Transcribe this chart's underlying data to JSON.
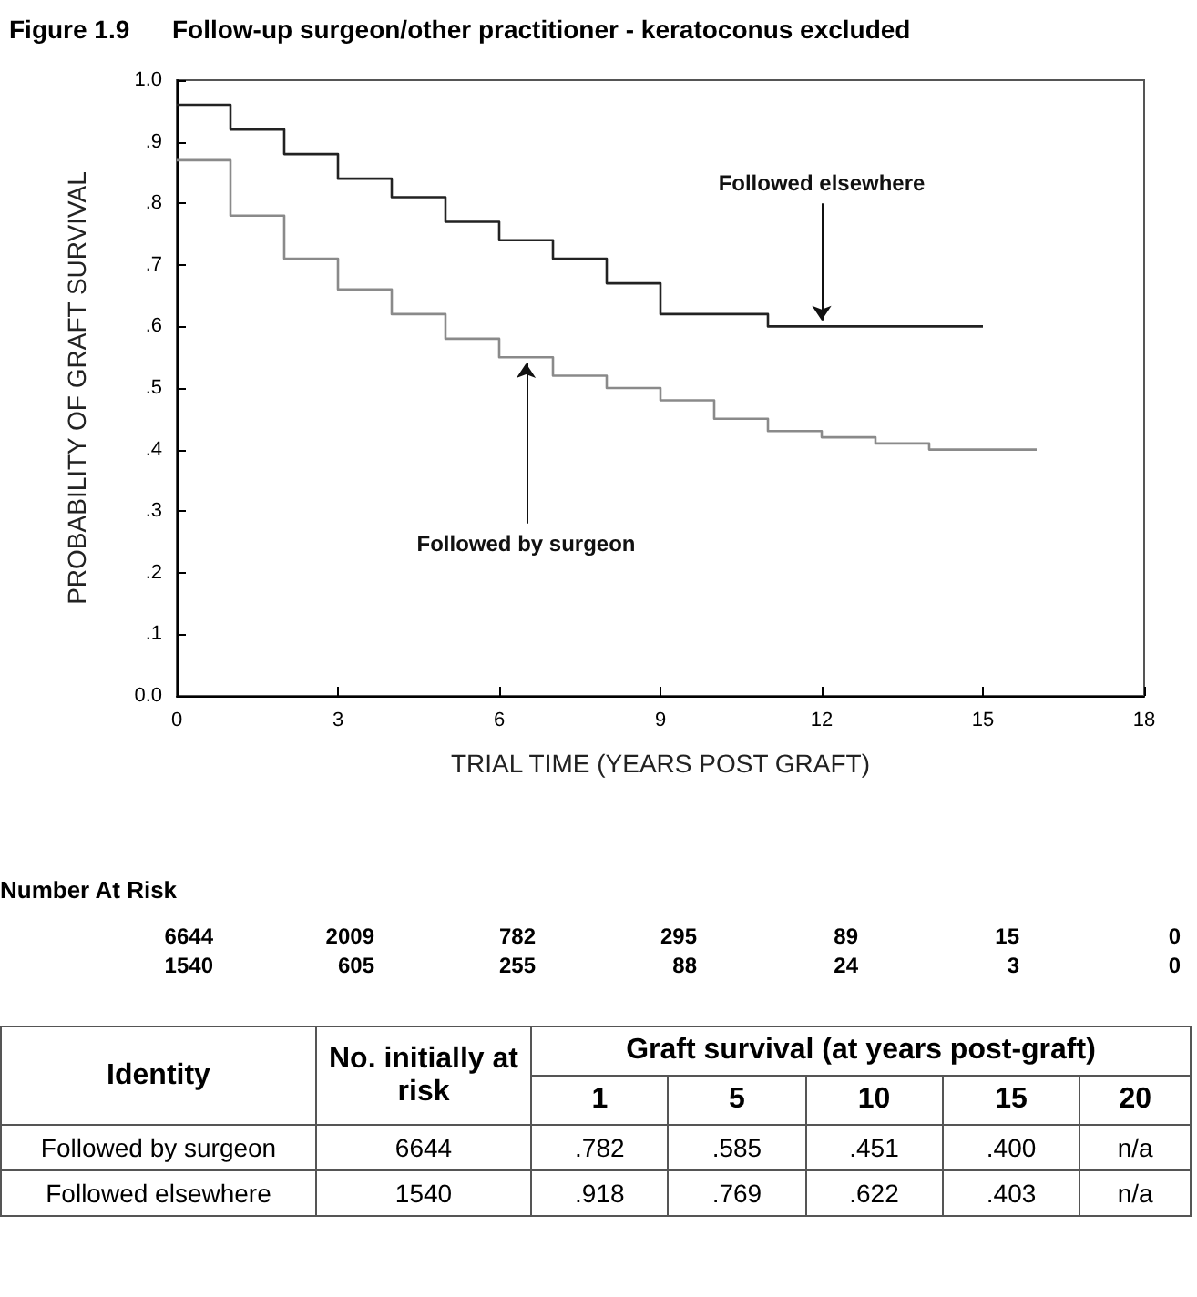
{
  "chart_data": {
    "type": "step",
    "title": "Figure 1.9      Follow-up surgeon/other practitioner - keratoconus excluded",
    "xlabel": "TRIAL TIME (YEARS POST GRAFT)",
    "ylabel": "PROBABILITY OF GRAFT SURVIVAL",
    "xlim": [
      0,
      18
    ],
    "xticks": [
      0,
      3,
      6,
      9,
      12,
      15,
      18
    ],
    "ylim": [
      0,
      1
    ],
    "yticks": [
      {
        "value": 0,
        "label": "0.0"
      },
      {
        "value": 0.1,
        "label": ".1"
      },
      {
        "value": 0.2,
        "label": ".2"
      },
      {
        "value": 0.3,
        "label": ".3"
      },
      {
        "value": 0.4,
        "label": ".4"
      },
      {
        "value": 0.5,
        "label": ".5"
      },
      {
        "value": 0.6,
        "label": ".6"
      },
      {
        "value": 0.7,
        "label": ".7"
      },
      {
        "value": 0.8,
        "label": ".8"
      },
      {
        "value": 0.9,
        "label": ".9"
      },
      {
        "value": 1,
        "label": "1.0"
      }
    ],
    "grid": false,
    "marker": "none",
    "line_style": "solid",
    "series": [
      {
        "color": "#222222",
        "x": [
          0,
          1,
          2,
          3,
          4,
          5,
          6,
          7,
          8,
          9,
          11,
          15
        ],
        "values": [
          0.96,
          0.92,
          0.88,
          0.84,
          0.81,
          0.77,
          0.74,
          0.71,
          0.67,
          0.62,
          0.6,
          0.6
        ]
      },
      {
        "color": "#8a8a8a",
        "x": [
          0,
          1,
          2,
          3,
          4,
          5,
          6,
          7,
          8,
          9,
          10,
          11,
          12,
          13,
          14,
          16
        ],
        "values": [
          0.87,
          0.78,
          0.71,
          0.66,
          0.62,
          0.58,
          0.55,
          0.52,
          0.5,
          0.48,
          0.45,
          0.43,
          0.42,
          0.41,
          0.4,
          0.4
        ]
      }
    ],
    "annotations": [
      {
        "text": "Followed elsewhere",
        "x": 12,
        "y": 0.6
      },
      {
        "text": "Followed by surgeon",
        "x": 6.5,
        "y": 0.55
      },
      "Number At Risk",
      "6644",
      "2009",
      "782",
      "295",
      "89",
      "15",
      "0",
      "1540",
      "605",
      "255",
      "88",
      "24",
      "3",
      "0",
      "Identity",
      "No. initially at risk",
      "Graft survival (at years post-graft)",
      "1",
      "5",
      "10",
      "15",
      "20",
      "Followed by surgeon",
      "6644",
      ".782",
      ".585",
      ".451",
      ".400",
      "n/a",
      "Followed elsewhere",
      "1540",
      ".918",
      ".769",
      ".622",
      ".403",
      "n/a"
    ]
  }
}
